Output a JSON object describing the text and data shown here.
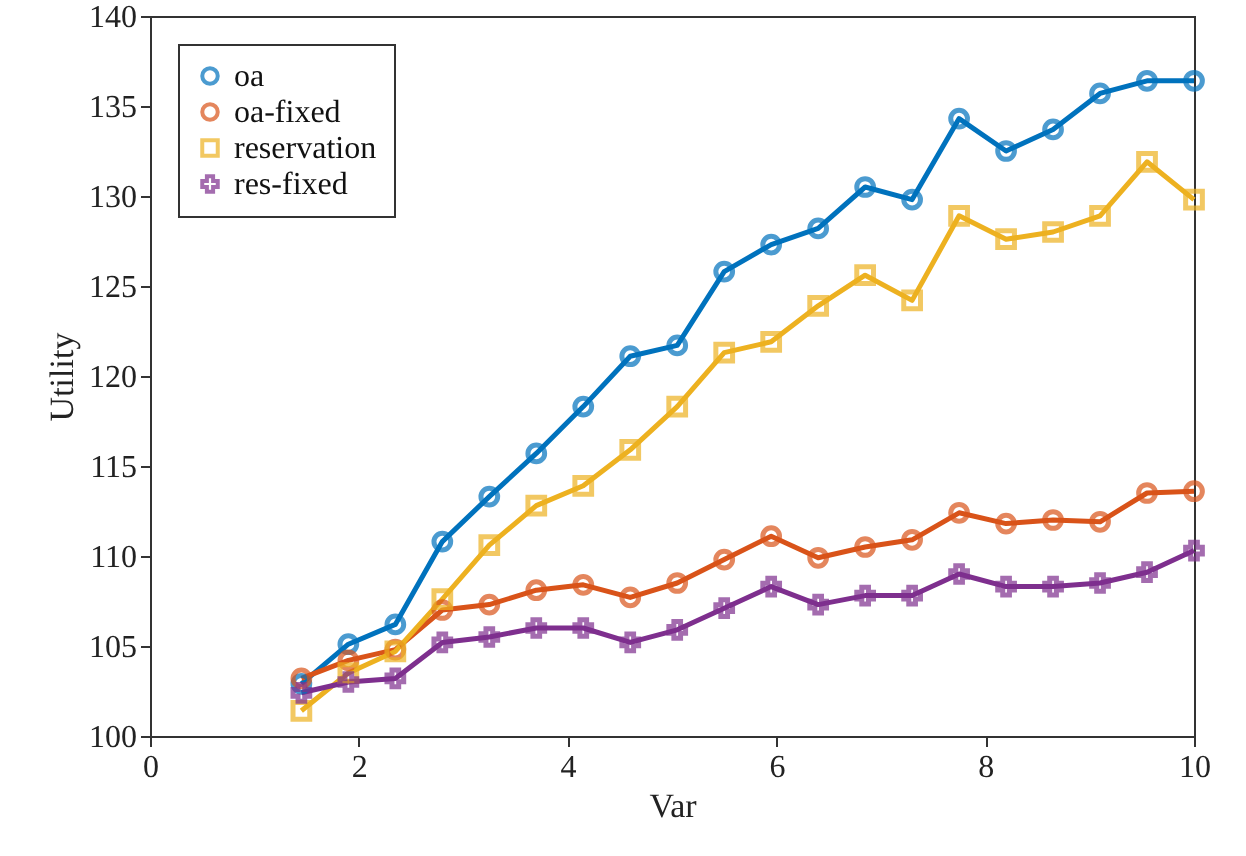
{
  "chart_data": {
    "type": "line",
    "xlabel": "Var",
    "ylabel": "Utility",
    "x": [
      1.45,
      1.9,
      2.35,
      2.8,
      3.25,
      3.7,
      4.15,
      4.6,
      5.05,
      5.5,
      5.95,
      6.4,
      6.85,
      7.3,
      7.75,
      8.2,
      8.65,
      9.1,
      9.55,
      10
    ],
    "series": [
      {
        "name": "oa",
        "color": "#0072bd",
        "marker": "circle",
        "values": [
          102.9,
          105.1,
          106.2,
          110.8,
          113.3,
          115.7,
          118.3,
          121.1,
          121.7,
          125.8,
          127.3,
          128.2,
          130.5,
          129.8,
          134.3,
          132.5,
          133.7,
          135.7,
          136.4,
          136.4
        ]
      },
      {
        "name": "oa-fixed",
        "color": "#d95319",
        "marker": "circle",
        "values": [
          103.2,
          104.2,
          104.8,
          107.0,
          107.3,
          108.1,
          108.4,
          107.7,
          108.5,
          109.8,
          111.1,
          109.9,
          110.5,
          110.9,
          112.4,
          111.8,
          112.0,
          111.9,
          113.5,
          113.6
        ]
      },
      {
        "name": "reservation",
        "color": "#edb120",
        "marker": "square",
        "values": [
          101.4,
          103.5,
          104.7,
          107.6,
          110.6,
          112.8,
          113.9,
          115.9,
          118.3,
          121.3,
          121.9,
          123.9,
          125.6,
          124.2,
          128.9,
          127.6,
          128.0,
          128.9,
          131.9,
          129.8
        ]
      },
      {
        "name": "res-fixed",
        "color": "#7e2f8e",
        "marker": "cross",
        "values": [
          102.4,
          103.0,
          103.2,
          105.2,
          105.5,
          106.0,
          106.0,
          105.2,
          105.9,
          107.1,
          108.3,
          107.3,
          107.8,
          107.8,
          109.0,
          108.3,
          108.3,
          108.5,
          109.1,
          110.3
        ]
      }
    ],
    "xlim": [
      0,
      10
    ],
    "xticks": [
      0,
      2,
      4,
      6,
      8,
      10
    ],
    "ylim": [
      100,
      140
    ],
    "yticks": [
      100,
      105,
      110,
      115,
      120,
      125,
      130,
      135,
      140
    ],
    "grid": false,
    "legend": "top left",
    "line_style": "solid"
  }
}
